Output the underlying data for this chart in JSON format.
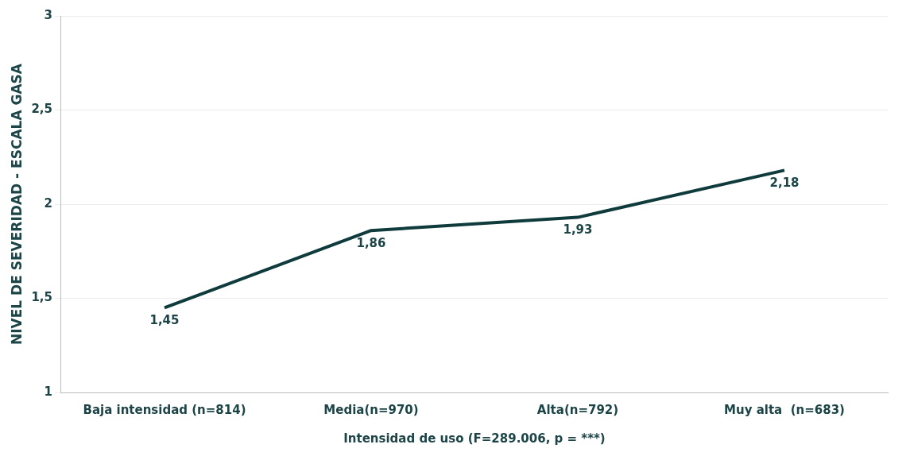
{
  "chart_data": {
    "type": "line",
    "xlabel": "Intensidad de uso (F=289.006, p = ***)",
    "ylabel": "NIVEL DE SEVERIDAD - ESCALA GASA",
    "categories": [
      "Baja intensidad (n=814)",
      "Media(n=970)",
      "Alta(n=792)",
      "Muy alta  (n=683)"
    ],
    "series": [
      {
        "color": "#0f3b3c",
        "values": [
          1.45,
          1.86,
          1.93,
          2.18
        ],
        "value_labels": [
          "1,45",
          "1,86",
          "1,93",
          "2,18"
        ]
      }
    ],
    "ylim": [
      1,
      3
    ],
    "yticks": [
      1,
      {
        "value": 1.5,
        "label": "1,5"
      },
      2,
      {
        "value": 2.5,
        "label": "2,5"
      },
      3
    ],
    "grid": "y",
    "legend": false,
    "marker": "none",
    "line_style": "solid"
  }
}
